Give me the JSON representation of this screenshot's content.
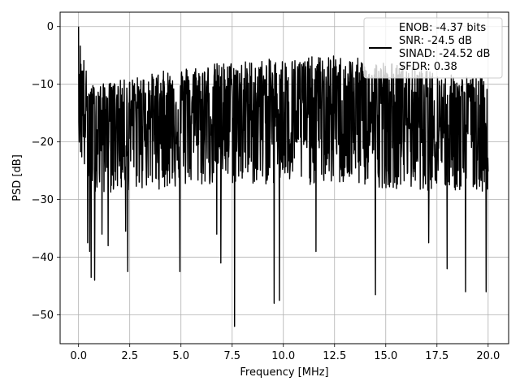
{
  "chart_data": {
    "type": "line",
    "title": "",
    "xlabel": "Frequency [MHz]",
    "ylabel": "PSD [dB]",
    "xlim": [
      -0.9,
      21.0
    ],
    "ylim": [
      -55,
      2.5
    ],
    "xticks": [
      0.0,
      2.5,
      5.0,
      7.5,
      10.0,
      12.5,
      15.0,
      17.5,
      20.0
    ],
    "xtick_labels": [
      "0.0",
      "2.5",
      "5.0",
      "7.5",
      "10.0",
      "12.5",
      "15.0",
      "17.5",
      "20.0"
    ],
    "yticks": [
      0,
      -10,
      -20,
      -30,
      -40,
      -50
    ],
    "ytick_labels": [
      "0",
      "−10",
      "−20",
      "−30",
      "−40",
      "−50"
    ],
    "grid": true,
    "legend_position": "top-right",
    "line_color": "#000000",
    "series": [
      {
        "name": "",
        "x_range": [
          0.0,
          20.0
        ],
        "envelope": {
          "x": [
            0.0,
            0.5,
            1.0,
            2.5,
            5.0,
            7.5,
            10.0,
            12.5,
            15.0,
            17.5,
            20.0
          ],
          "upper": [
            0.0,
            -10.0,
            -10.0,
            -9.0,
            -7.0,
            -6.0,
            -5.5,
            -5.0,
            -6.0,
            -8.0,
            -9.0
          ],
          "base": [
            -12.0,
            -15.0,
            -16.0,
            -15.5,
            -15.0,
            -14.5,
            -14.5,
            -14.5,
            -15.0,
            -15.5,
            -16.0
          ],
          "lower": [
            -22.0,
            -28.0,
            -29.0,
            -28.5,
            -28.0,
            -27.5,
            -27.5,
            -27.5,
            -28.0,
            -28.5,
            -29.0
          ]
        },
        "dips": [
          {
            "x": 0.45,
            "y": -37.5
          },
          {
            "x": 0.55,
            "y": -39.0
          },
          {
            "x": 0.62,
            "y": -43.5
          },
          {
            "x": 0.78,
            "y": -44.0
          },
          {
            "x": 1.15,
            "y": -36.0
          },
          {
            "x": 1.45,
            "y": -38.0
          },
          {
            "x": 2.3,
            "y": -35.5
          },
          {
            "x": 2.4,
            "y": -42.5
          },
          {
            "x": 4.95,
            "y": -42.5
          },
          {
            "x": 6.75,
            "y": -36.0
          },
          {
            "x": 6.95,
            "y": -41.0
          },
          {
            "x": 7.62,
            "y": -52.0
          },
          {
            "x": 9.55,
            "y": -48.0
          },
          {
            "x": 9.8,
            "y": -47.5
          },
          {
            "x": 11.6,
            "y": -39.0
          },
          {
            "x": 14.5,
            "y": -46.5
          },
          {
            "x": 17.1,
            "y": -37.5
          },
          {
            "x": 18.0,
            "y": -42.0
          },
          {
            "x": 18.9,
            "y": -46.0
          },
          {
            "x": 19.9,
            "y": -46.0
          }
        ]
      }
    ],
    "legend": {
      "lines": [
        "ENOB: -4.37 bits",
        "SNR: -24.5 dB",
        "SINAD: -24.52 dB",
        "SFDR: 0.38"
      ]
    }
  }
}
